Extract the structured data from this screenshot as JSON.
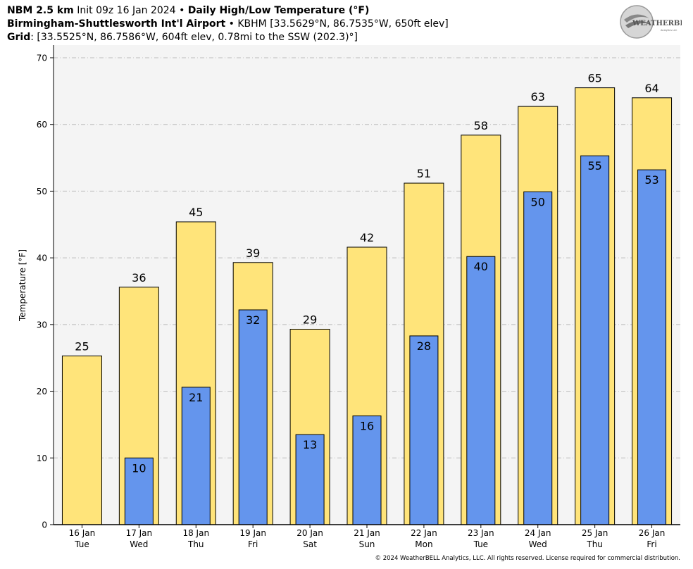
{
  "header": {
    "line1_bold": "NBM 2.5 km",
    "line1_init": "Init 09z 16 Jan 2024",
    "line1_sep": "•",
    "line1_title": "Daily High/Low Temperature (°F)",
    "line2_bold": "Birmingham-Shuttlesworth Int'l Airport",
    "line2_sep": "•",
    "line2_info": "KBHM [33.5629°N, 86.7535°W, 650ft elev]",
    "line3_bold": "Grid",
    "line3_info": ": [33.5525°N, 86.7586°W, 604ft elev, 0.78mi to the SSW (202.3)°]"
  },
  "logo": {
    "text": "WEATHERBELL",
    "subtext": "Analytics LLC"
  },
  "copyright": "© 2024 WeatherBELL Analytics, LLC. All rights reserved. License required for commercial distribution.",
  "chart_data": {
    "type": "bar",
    "ylabel": "Temperature [°F]",
    "ylim": [
      0,
      70
    ],
    "yticks": [
      0,
      10,
      20,
      30,
      40,
      50,
      60,
      70
    ],
    "grid": true,
    "categories": [
      {
        "date": "16 Jan",
        "day": "Tue"
      },
      {
        "date": "17 Jan",
        "day": "Wed"
      },
      {
        "date": "18 Jan",
        "day": "Thu"
      },
      {
        "date": "19 Jan",
        "day": "Fri"
      },
      {
        "date": "20 Jan",
        "day": "Sat"
      },
      {
        "date": "21 Jan",
        "day": "Sun"
      },
      {
        "date": "22 Jan",
        "day": "Mon"
      },
      {
        "date": "23 Jan",
        "day": "Tue"
      },
      {
        "date": "24 Jan",
        "day": "Wed"
      },
      {
        "date": "25 Jan",
        "day": "Thu"
      },
      {
        "date": "26 Jan",
        "day": "Fri"
      }
    ],
    "series": [
      {
        "values": [
          25.3,
          35.6,
          45.4,
          39.3,
          29.3,
          41.6,
          51.2,
          58.4,
          62.7,
          65.5,
          64.0
        ],
        "labels": [
          "25",
          "36",
          "45",
          "39",
          "29",
          "42",
          "51",
          "58",
          "63",
          "65",
          "64"
        ],
        "color": "#ffe47a"
      },
      {
        "values": [
          null,
          10.0,
          20.6,
          32.2,
          13.5,
          16.3,
          28.3,
          40.2,
          49.9,
          55.3,
          53.2
        ],
        "labels": [
          "",
          "10",
          "21",
          "32",
          "13",
          "16",
          "28",
          "40",
          "50",
          "55",
          "53"
        ],
        "color": "#6495ed"
      }
    ],
    "colors": {
      "plot_bg": "#f4f4f4",
      "grid": "#bbbbbb"
    }
  }
}
